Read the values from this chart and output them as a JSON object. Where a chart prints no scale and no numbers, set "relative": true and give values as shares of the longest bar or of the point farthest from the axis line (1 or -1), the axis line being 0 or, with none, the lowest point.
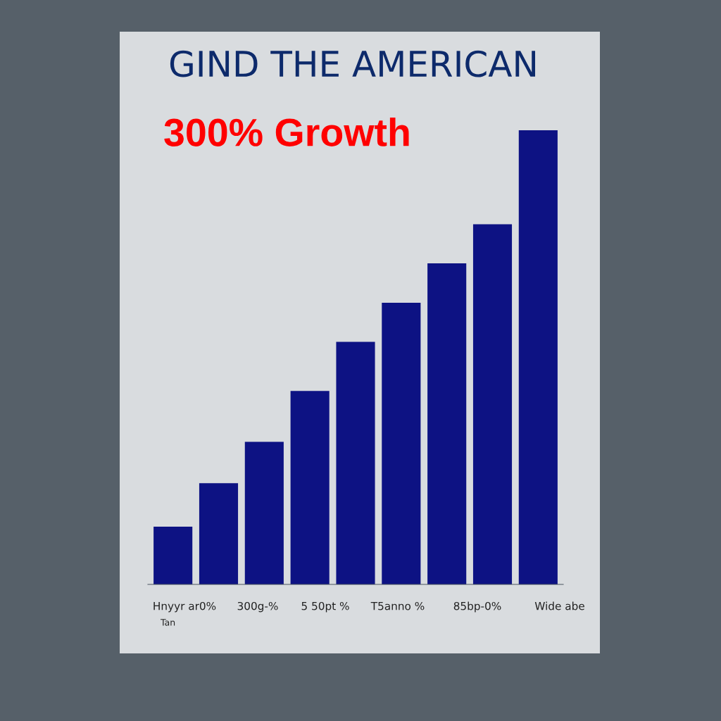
{
  "chart_data": {
    "type": "bar",
    "title": "GIND THE AMERICAN",
    "subtitle": "300% Growth",
    "categories": [
      null,
      null,
      null,
      null,
      null,
      null,
      null,
      null,
      null
    ],
    "values": [
      0.127,
      0.223,
      0.314,
      0.426,
      0.534,
      0.62,
      0.707,
      0.793,
      1
    ],
    "color": "#0d1283",
    "relative": true,
    "grid": false,
    "annotations": [
      "Hnyyr ar0%",
      "300g-%",
      "5 50pt %",
      "T5anno %",
      "85bp-0%",
      "Wide abe",
      "Tan"
    ]
  }
}
